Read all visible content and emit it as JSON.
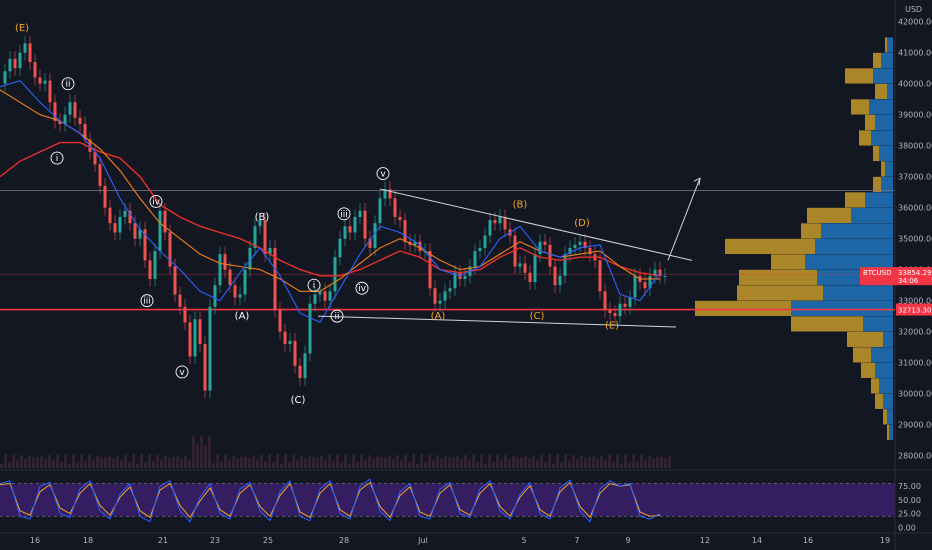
{
  "chart_data": {
    "type": "line",
    "symbol": "BTCUSD",
    "currency": "USD",
    "price_axis": {
      "ylim": [
        27600,
        42700
      ],
      "ticks": [
        "42000.00",
        "41000.00",
        "40000.00",
        "39000.00",
        "38000.00",
        "37000.00",
        "36000.00",
        "35000.00",
        "34000.00",
        "33000.00",
        "32000.00",
        "31000.00",
        "30000.00",
        "29000.00",
        "28000.00"
      ]
    },
    "x_axis": {
      "ticks": [
        "16",
        "18",
        "21",
        "23",
        "25",
        "28",
        "Jul",
        "5",
        "7",
        "9",
        "12",
        "14",
        "16",
        "19"
      ]
    },
    "last_price": {
      "label": "33854.29",
      "value": 33854.29,
      "countdown": "34:06",
      "color": "#f23645"
    },
    "support_level": {
      "label": "32713.30",
      "value": 32713.3,
      "color": "#f23645"
    },
    "resistance_level": {
      "value": 36550
    },
    "price_series": {
      "name": "",
      "color": "#b2b5be",
      "x": [
        0,
        5,
        10,
        15,
        20,
        25,
        30,
        35,
        40,
        45,
        50,
        55,
        60,
        65,
        70,
        75,
        80,
        85,
        90,
        95,
        100,
        105,
        110,
        115,
        120,
        125,
        130,
        135,
        140,
        145,
        150,
        155,
        160,
        165,
        170,
        175,
        180,
        185,
        190,
        195,
        200,
        205,
        210,
        215,
        220,
        225,
        230,
        235,
        240,
        245,
        250,
        255,
        260,
        265,
        270,
        275,
        280,
        285,
        290,
        295,
        300,
        305,
        310,
        315,
        320,
        325,
        330,
        335,
        340,
        345,
        350,
        355,
        360,
        365,
        370,
        375,
        380,
        385,
        390,
        395,
        400,
        405,
        410,
        415,
        420,
        425,
        430,
        435,
        440,
        445,
        450,
        455,
        460,
        465,
        470,
        475,
        480,
        485,
        490,
        495,
        500,
        505,
        510,
        515,
        520,
        525,
        530,
        535,
        540,
        545,
        550,
        555,
        560,
        565,
        570,
        575,
        580,
        585,
        590,
        595,
        600,
        605,
        610,
        615,
        620,
        625,
        630,
        635,
        640,
        645,
        650,
        655,
        660,
        665
      ],
      "values": [
        40000,
        40400,
        40800,
        40500,
        41000,
        41300,
        40700,
        40200,
        40000,
        40100,
        39400,
        38800,
        38700,
        39000,
        39400,
        38900,
        38700,
        38200,
        37800,
        37400,
        36700,
        36000,
        35500,
        35200,
        35700,
        35900,
        35500,
        35000,
        35300,
        34300,
        33700,
        34600,
        35900,
        35200,
        34100,
        33200,
        32800,
        32300,
        31200,
        32400,
        31600,
        30100,
        32800,
        33500,
        34500,
        34000,
        33500,
        33100,
        33200,
        34000,
        34700,
        35400,
        35600,
        34500,
        34700,
        32700,
        32000,
        31600,
        31700,
        30900,
        30500,
        31300,
        32900,
        33200,
        33300,
        33000,
        33300,
        34400,
        35000,
        35400,
        35200,
        35700,
        35900,
        35000,
        34700,
        35500,
        36300,
        36600,
        36300,
        35700,
        35600,
        34900,
        34800,
        34900,
        34600,
        34600,
        33400,
        32900,
        33000,
        33300,
        33400,
        33900,
        33700,
        33800,
        34100,
        34600,
        34700,
        35100,
        35600,
        35500,
        35700,
        35300,
        35100,
        34100,
        34200,
        33900,
        33600,
        34500,
        34900,
        34800,
        34100,
        33500,
        33800,
        34500,
        34700,
        34800,
        34900,
        34700,
        34500,
        34300,
        33300,
        32700,
        32600,
        32500,
        32900,
        32800,
        33100,
        33800,
        33600,
        33400,
        33800,
        34000,
        33800,
        33800
      ]
    },
    "ma_red": {
      "color": "#e8302a",
      "x": [
        0,
        20,
        40,
        60,
        80,
        100,
        120,
        140,
        160,
        180,
        200,
        220,
        240,
        260,
        280,
        300,
        320,
        340,
        360,
        380,
        400,
        420,
        440,
        460,
        480,
        500,
        520,
        540,
        560,
        580,
        600,
        620,
        640,
        660
      ],
      "values": [
        37000,
        37500,
        37800,
        38100,
        38100,
        37800,
        37600,
        37000,
        36100,
        35700,
        35400,
        35200,
        35000,
        34700,
        34300,
        34000,
        33800,
        33800,
        34000,
        34300,
        34600,
        34400,
        34000,
        33900,
        34000,
        34400,
        34700,
        34400,
        34300,
        34400,
        34400,
        34100,
        33900,
        33800
      ]
    },
    "ma_orange": {
      "color": "#f57f17",
      "x": [
        0,
        20,
        40,
        60,
        80,
        100,
        120,
        140,
        160,
        180,
        200,
        220,
        240,
        260,
        280,
        300,
        320,
        340,
        360,
        380,
        400,
        420,
        440,
        460,
        480,
        500,
        520,
        540,
        560,
        580,
        600,
        620,
        640,
        660
      ],
      "values": [
        39800,
        39400,
        39000,
        38800,
        38400,
        37900,
        37200,
        36300,
        35500,
        35000,
        34500,
        34200,
        34100,
        34000,
        33700,
        33300,
        33300,
        33700,
        34200,
        34700,
        35000,
        34700,
        34300,
        34000,
        34100,
        34500,
        34900,
        34600,
        34400,
        34500,
        34600,
        34100,
        33700,
        33700
      ]
    },
    "ma_blue": {
      "color": "#2962ff",
      "x": [
        0,
        20,
        40,
        60,
        80,
        100,
        120,
        140,
        160,
        180,
        200,
        220,
        240,
        260,
        280,
        300,
        320,
        340,
        360,
        380,
        400,
        420,
        440,
        460,
        480,
        500,
        520,
        540,
        560,
        580,
        600,
        620,
        640,
        660
      ],
      "values": [
        39900,
        40100,
        39400,
        38800,
        38400,
        37600,
        36300,
        35300,
        34600,
        34000,
        33300,
        33000,
        33900,
        34700,
        33800,
        32600,
        32300,
        33400,
        34500,
        35400,
        35200,
        34800,
        34000,
        33800,
        34100,
        35000,
        35400,
        34600,
        34400,
        34700,
        34800,
        33200,
        33000,
        33900
      ]
    },
    "wave_labels": [
      {
        "text": "(E)",
        "color": "orange",
        "x": 22,
        "price": 41800
      },
      {
        "text": "ii",
        "circled": true,
        "x": 68,
        "price": 40000
      },
      {
        "text": "i",
        "circled": true,
        "x": 57,
        "price": 37600
      },
      {
        "text": "iv",
        "circled": true,
        "x": 156,
        "price": 36200
      },
      {
        "text": "iii",
        "circled": true,
        "x": 147,
        "price": 33000
      },
      {
        "text": "v",
        "circled": true,
        "x": 182,
        "price": 30700
      },
      {
        "text": "(A)",
        "color": "white",
        "x": 242,
        "price": 32500
      },
      {
        "text": "(B)",
        "color": "white",
        "x": 262,
        "price": 35700
      },
      {
        "text": "(C)",
        "color": "white",
        "x": 298,
        "price": 29800
      },
      {
        "text": "iii",
        "circled": true,
        "x": 344,
        "price": 35800
      },
      {
        "text": "i",
        "circled": true,
        "x": 314,
        "price": 33500
      },
      {
        "text": "iv",
        "circled": true,
        "x": 362,
        "price": 33400
      },
      {
        "text": "ii",
        "circled": true,
        "x": 337,
        "price": 32500
      },
      {
        "text": "v",
        "circled": true,
        "x": 383,
        "price": 37100
      },
      {
        "text": "(B)",
        "color": "orange",
        "x": 520,
        "price": 36100
      },
      {
        "text": "(D)",
        "color": "orange",
        "x": 582,
        "price": 35500
      },
      {
        "text": "(A)",
        "color": "orange",
        "x": 438,
        "price": 32500
      },
      {
        "text": "(C)",
        "color": "orange",
        "x": 537,
        "price": 32500
      },
      {
        "text": "(E)",
        "color": "orange",
        "x": 612,
        "price": 32200
      }
    ],
    "trendlines": [
      {
        "x1": 380,
        "p1": 36600,
        "x2": 692,
        "p2": 34300,
        "color": "#d1d4dc"
      },
      {
        "x1": 318,
        "p1": 32500,
        "x2": 676,
        "p2": 32150,
        "color": "#d1d4dc"
      }
    ],
    "projection": {
      "x1": 668,
      "p1": 34300,
      "x2": 700,
      "p2": 36950
    },
    "volume_profile": {
      "rows": [
        {
          "price": 41250,
          "up": 2,
          "down": 6
        },
        {
          "price": 40750,
          "up": 8,
          "down": 12
        },
        {
          "price": 40250,
          "up": 28,
          "down": 20
        },
        {
          "price": 39750,
          "up": 12,
          "down": 6
        },
        {
          "price": 39250,
          "up": 18,
          "down": 24
        },
        {
          "price": 38750,
          "up": 10,
          "down": 18
        },
        {
          "price": 38250,
          "up": 12,
          "down": 22
        },
        {
          "price": 37750,
          "up": 6,
          "down": 14
        },
        {
          "price": 37250,
          "up": 4,
          "down": 8
        },
        {
          "price": 36750,
          "up": 8,
          "down": 12
        },
        {
          "price": 36250,
          "up": 20,
          "down": 28
        },
        {
          "price": 35750,
          "up": 44,
          "down": 42
        },
        {
          "price": 35250,
          "up": 20,
          "down": 72
        },
        {
          "price": 34750,
          "up": 90,
          "down": 78
        },
        {
          "price": 34250,
          "up": 34,
          "down": 88
        },
        {
          "price": 33750,
          "up": 78,
          "down": 76
        },
        {
          "price": 33250,
          "up": 86,
          "down": 70
        },
        {
          "price": 32750,
          "up": 96,
          "down": 102
        },
        {
          "price": 32250,
          "up": 72,
          "down": 30
        },
        {
          "price": 31750,
          "up": 36,
          "down": 10
        },
        {
          "price": 31250,
          "up": 18,
          "down": 22
        },
        {
          "price": 30750,
          "up": 14,
          "down": 18
        },
        {
          "price": 30250,
          "up": 8,
          "down": 14
        },
        {
          "price": 29750,
          "up": 8,
          "down": 10
        },
        {
          "price": 29250,
          "up": 4,
          "down": 6
        },
        {
          "price": 28750,
          "up": 2,
          "down": 4
        }
      ]
    },
    "oscillator": {
      "ylim": [
        -5,
        90
      ],
      "ticks": [
        "75.00",
        "50.00",
        "25.00",
        "0.00"
      ],
      "band": [
        20,
        80
      ],
      "k_color": "#2962ff",
      "d_color": "#f5a623",
      "x": [
        0,
        10,
        20,
        30,
        40,
        50,
        60,
        70,
        80,
        90,
        100,
        110,
        120,
        130,
        140,
        150,
        160,
        170,
        180,
        190,
        200,
        210,
        220,
        230,
        240,
        250,
        260,
        270,
        280,
        290,
        300,
        310,
        320,
        330,
        340,
        350,
        360,
        370,
        380,
        390,
        400,
        410,
        420,
        430,
        440,
        450,
        460,
        470,
        480,
        490,
        500,
        510,
        520,
        530,
        540,
        550,
        560,
        570,
        580,
        590,
        600,
        610,
        620,
        630,
        640,
        650,
        660
      ],
      "k": [
        80,
        85,
        20,
        15,
        75,
        82,
        25,
        18,
        70,
        85,
        30,
        15,
        60,
        80,
        20,
        10,
        75,
        85,
        30,
        10,
        55,
        80,
        25,
        15,
        70,
        82,
        30,
        12,
        65,
        85,
        20,
        12,
        70,
        85,
        25,
        15,
        75,
        88,
        30,
        12,
        65,
        80,
        20,
        15,
        70,
        82,
        25,
        18,
        70,
        85,
        30,
        15,
        60,
        82,
        25,
        15,
        72,
        86,
        30,
        10,
        70,
        85,
        75,
        80,
        20,
        15,
        25
      ],
      "d": [
        78,
        80,
        30,
        22,
        65,
        78,
        35,
        25,
        62,
        80,
        40,
        22,
        55,
        74,
        30,
        18,
        68,
        80,
        40,
        18,
        48,
        72,
        32,
        20,
        62,
        78,
        38,
        20,
        58,
        80,
        28,
        18,
        62,
        80,
        32,
        20,
        68,
        82,
        38,
        18,
        58,
        74,
        28,
        20,
        62,
        78,
        32,
        22,
        62,
        80,
        38,
        20,
        55,
        76,
        32,
        20,
        65,
        82,
        38,
        18,
        62,
        80,
        75,
        78,
        28,
        20,
        22
      ]
    }
  }
}
